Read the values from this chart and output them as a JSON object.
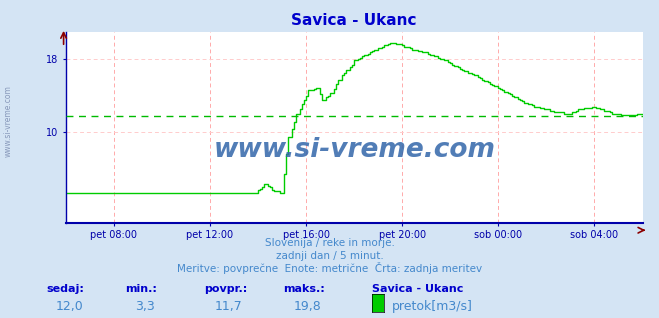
{
  "title": "Savica - Ukanc",
  "title_color": "#0000cc",
  "bg_color": "#d4e4f4",
  "plot_bg_color": "#ffffff",
  "line_color": "#00cc00",
  "avg_line_color": "#00bb00",
  "avg_value": 11.7,
  "grid_color": "#ffaaaa",
  "grid_h_color": "#ffcccc",
  "axis_color": "#0000cc",
  "tick_color": "#0000aa",
  "x_labels": [
    "pet 08:00",
    "pet 12:00",
    "pet 16:00",
    "pet 20:00",
    "sob 00:00",
    "sob 04:00"
  ],
  "y_ticks": [
    10,
    18
  ],
  "y_min": 0,
  "y_max": 21.0,
  "subtitle1": "Slovenija / reke in morje.",
  "subtitle2": "zadnji dan / 5 minut.",
  "subtitle3": "Meritve: povprečne  Enote: metrične  Črta: zadnja meritev",
  "subtitle_color": "#4488cc",
  "footer_label_color": "#0000cc",
  "footer_value_color": "#4488cc",
  "sedaj_label": "sedaj:",
  "min_label": "min.:",
  "povpr_label": "povpr.:",
  "maks_label": "maks.:",
  "sedaj_val": "12,0",
  "min_val": "3,3",
  "povpr_val": "11,7",
  "maks_val": "19,8",
  "legend_station": "Savica - Ukanc",
  "legend_item": "pretok[m3/s]",
  "legend_color": "#00cc00",
  "watermark_main": "www.si-vreme.com",
  "watermark_main_color": "#3366aa",
  "watermark_side": "www.si-vreme.com",
  "watermark_side_color": "#8899bb",
  "n_points": 289
}
